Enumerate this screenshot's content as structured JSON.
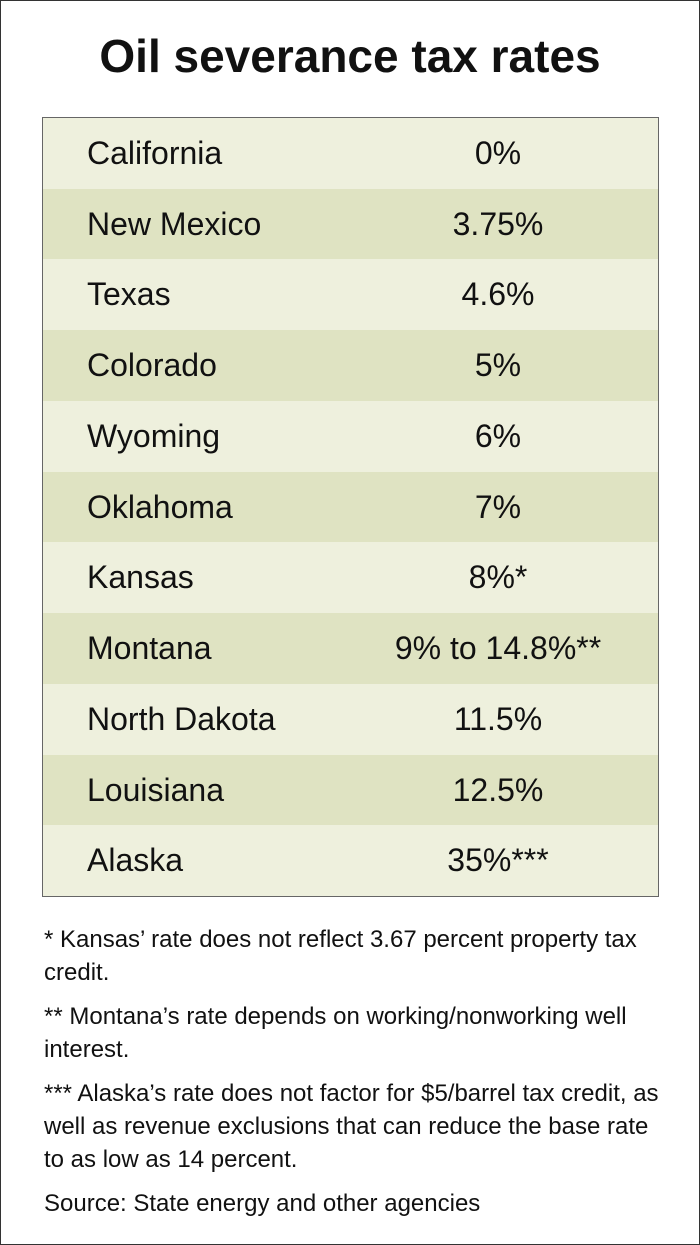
{
  "header": {
    "title": "Oil severance tax rates"
  },
  "table": {
    "rows": [
      [
        "California",
        "0%"
      ],
      [
        "New Mexico",
        "3.75%"
      ],
      [
        "Texas",
        "4.6%"
      ],
      [
        "Colorado",
        "5%"
      ],
      [
        "Wyoming",
        "6%"
      ],
      [
        "Oklahoma",
        "7%"
      ],
      [
        "Kansas",
        "8%*"
      ],
      [
        "Montana",
        "9% to 14.8%**"
      ],
      [
        "North Dakota",
        "11.5%"
      ],
      [
        "Louisiana",
        "12.5%"
      ],
      [
        "Alaska",
        "35%***"
      ]
    ]
  },
  "footnotes": [
    "* Kansas’ rate does not reflect 3.67 percent property tax credit.",
    "** Montana’s rate depends on working/nonworking well interest.",
    "*** Alaska’s rate does not factor for $5/barrel tax credit, as well as revenue exclusions that can reduce the base rate to as low as 14 percent."
  ],
  "source": "Source: State energy and other agencies"
}
